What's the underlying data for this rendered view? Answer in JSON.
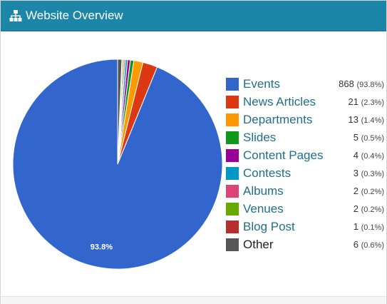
{
  "header": {
    "title": "Website Overview",
    "icon": "sitemap-icon",
    "color": "#1b86a8"
  },
  "chart_data": {
    "type": "pie",
    "title": "Website Overview",
    "legend_position": "right",
    "slice_label": "93.8%",
    "slices": [
      {
        "label": "Events",
        "value": 868,
        "percent": "93.8%",
        "color": "#3366cc"
      },
      {
        "label": "News Articles",
        "value": 21,
        "percent": "2.3%",
        "color": "#dc3912"
      },
      {
        "label": "Departments",
        "value": 13,
        "percent": "1.4%",
        "color": "#ff9900"
      },
      {
        "label": "Slides",
        "value": 5,
        "percent": "0.5%",
        "color": "#109618"
      },
      {
        "label": "Content Pages",
        "value": 4,
        "percent": "0.4%",
        "color": "#990099"
      },
      {
        "label": "Contests",
        "value": 3,
        "percent": "0.3%",
        "color": "#0099c6"
      },
      {
        "label": "Albums",
        "value": 2,
        "percent": "0.2%",
        "color": "#dd4477"
      },
      {
        "label": "Venues",
        "value": 2,
        "percent": "0.2%",
        "color": "#66aa00"
      },
      {
        "label": "Blog Post",
        "value": 1,
        "percent": "0.1%",
        "color": "#b82e2e"
      },
      {
        "label": "Other",
        "value": 6,
        "percent": "0.6%",
        "color": "#555555"
      }
    ]
  }
}
